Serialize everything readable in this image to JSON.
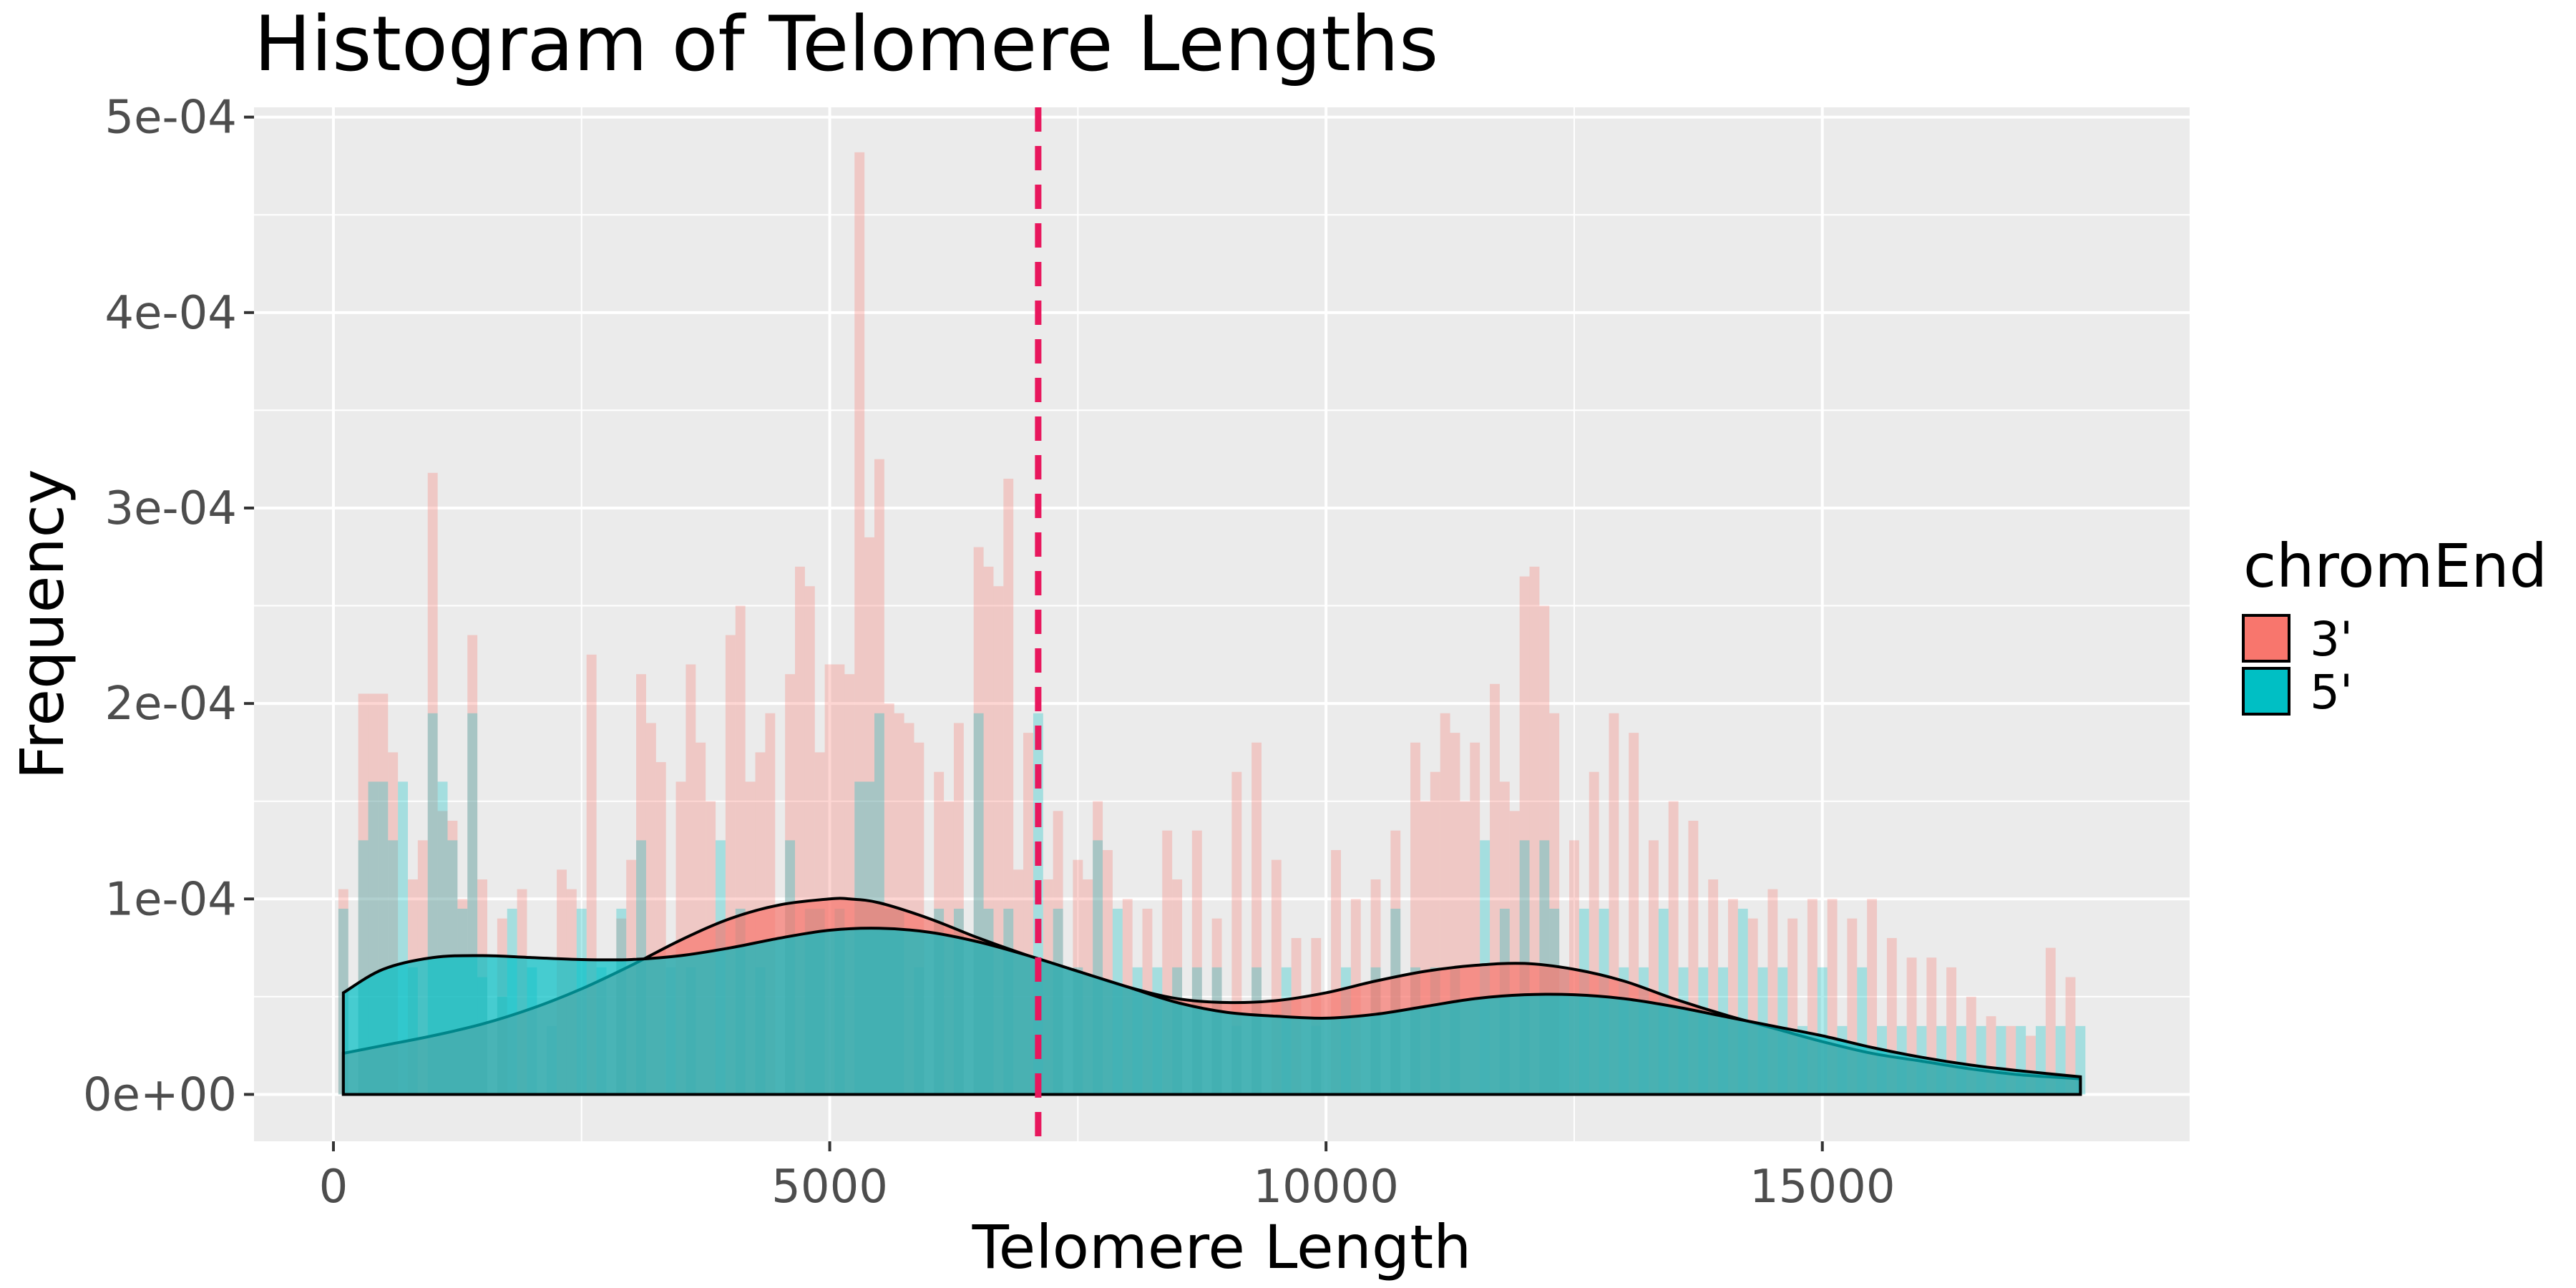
{
  "chart_data": {
    "type": "histogram",
    "title": "Histogram of Telomere Lengths",
    "xlabel": "Telomere Length",
    "ylabel": "Frequency",
    "xlim": [
      -800,
      18700
    ],
    "ylim": [
      -2.4e-05,
      0.000505
    ],
    "x_ticks": [
      0,
      5000,
      10000,
      15000
    ],
    "x_tick_labels": [
      "0",
      "5000",
      "10000",
      "15000"
    ],
    "y_ticks": [
      0,
      0.0001,
      0.0002,
      0.0003,
      0.0004,
      0.0005
    ],
    "y_tick_labels": [
      "0e+00",
      "1e-04",
      "2e-04",
      "3e-04",
      "4e-04",
      "5e-04"
    ],
    "grid": true,
    "legend": {
      "title": "chromEnd",
      "position": "right",
      "entries": [
        {
          "label": "3'",
          "color": "#F8766D"
        },
        {
          "label": "5'",
          "color": "#00BFC4"
        }
      ]
    },
    "reference_line": {
      "x": 7100,
      "color": "#E8175D",
      "style": "dashed"
    },
    "bin_width": 100,
    "series": [
      {
        "name": "3'",
        "color": "#F8766D",
        "histogram": {
          "x": [
            100,
            300,
            400,
            500,
            600,
            800,
            900,
            1000,
            1100,
            1200,
            1300,
            1400,
            1500,
            1700,
            1900,
            2300,
            2400,
            2600,
            2900,
            3000,
            3100,
            3200,
            3300,
            3500,
            3600,
            3700,
            3800,
            4000,
            4100,
            4200,
            4300,
            4400,
            4600,
            4700,
            4800,
            4900,
            5000,
            5100,
            5200,
            5300,
            5400,
            5500,
            5600,
            5700,
            5800,
            5900,
            6100,
            6200,
            6300,
            6500,
            6600,
            6700,
            6800,
            6900,
            7000,
            7200,
            7300,
            7500,
            7600,
            7700,
            7800,
            8000,
            8200,
            8400,
            8500,
            8700,
            8900,
            9100,
            9300,
            9500,
            9700,
            9900,
            10100,
            10300,
            10500,
            10700,
            10900,
            11000,
            11100,
            11200,
            11300,
            11400,
            11500,
            11700,
            11800,
            11900,
            12000,
            12100,
            12200,
            12300,
            12500,
            12700,
            12900,
            13100,
            13300,
            13500,
            13700,
            13900,
            14100,
            14300,
            14500,
            14700,
            14900,
            15100,
            15300,
            15500,
            15700,
            15900,
            16100,
            16300,
            16500,
            16700,
            16900,
            17100,
            17300,
            17500
          ],
          "y": [
            0.000105,
            0.000205,
            0.000205,
            0.000205,
            0.000175,
            0.00011,
            0.00013,
            0.000318,
            0.000145,
            0.00014,
            0.0001,
            0.000235,
            0.00011,
            9e-05,
            0.000105,
            0.000115,
            0.000105,
            0.000225,
            9e-05,
            0.00012,
            0.000215,
            0.00019,
            0.00017,
            0.00016,
            0.00022,
            0.00018,
            0.00015,
            0.000235,
            0.00025,
            0.00016,
            0.000175,
            0.000195,
            0.000215,
            0.00027,
            0.00026,
            0.000175,
            0.00022,
            0.00022,
            0.000215,
            0.000482,
            0.000285,
            0.000325,
            0.0002,
            0.000195,
            0.00019,
            0.00018,
            0.000165,
            0.00015,
            0.00019,
            0.00028,
            0.00027,
            0.00026,
            0.000315,
            0.000115,
            0.000185,
            0.00011,
            0.000145,
            0.00012,
            0.00011,
            0.00015,
            0.000125,
            0.0001,
            9.5e-05,
            0.000135,
            0.00011,
            0.000135,
            9e-05,
            0.000165,
            0.00018,
            0.00012,
            8e-05,
            8e-05,
            0.000125,
            0.0001,
            0.00011,
            0.000135,
            0.00018,
            0.00015,
            0.000165,
            0.000195,
            0.000185,
            0.00015,
            0.00018,
            0.00021,
            0.00016,
            0.000145,
            0.000265,
            0.00027,
            0.00025,
            0.000195,
            0.00013,
            0.000165,
            0.000195,
            0.000185,
            0.00013,
            0.00015,
            0.00014,
            0.00011,
            0.0001,
            9e-05,
            0.000105,
            9e-05,
            0.0001,
            0.0001,
            9e-05,
            0.0001,
            8e-05,
            7e-05,
            7e-05,
            6.5e-05,
            5e-05,
            4e-05,
            3.5e-05,
            3e-05,
            7.5e-05,
            6e-05
          ]
        },
        "density": {
          "x": [
            100,
            500,
            1000,
            1500,
            2000,
            2500,
            3000,
            3500,
            4000,
            4500,
            5000,
            5200,
            5500,
            6000,
            6500,
            7000,
            7500,
            8000,
            8500,
            9000,
            9500,
            10000,
            10500,
            11000,
            11500,
            12000,
            12500,
            13000,
            13500,
            14000,
            14500,
            15000,
            15500,
            16000,
            16500,
            17000,
            17600
          ],
          "y": [
            2.1e-05,
            2.5e-05,
            3e-05,
            3.6e-05,
            4.4e-05,
            5.4e-05,
            6.6e-05,
            7.9e-05,
            9e-05,
            9.7e-05,
            0.0001,
            0.0001,
            9.8e-05,
            9e-05,
            8e-05,
            7.1e-05,
            6.3e-05,
            5.5e-05,
            4.9e-05,
            4.7e-05,
            4.8e-05,
            5.2e-05,
            5.8e-05,
            6.3e-05,
            6.6e-05,
            6.7e-05,
            6.4e-05,
            5.8e-05,
            4.9e-05,
            4.1e-05,
            3.4e-05,
            2.7e-05,
            2.1e-05,
            1.7e-05,
            1.3e-05,
            1e-05,
            8e-06
          ]
        }
      },
      {
        "name": "5'",
        "color": "#00BFC4",
        "histogram": {
          "x": [
            100,
            300,
            400,
            500,
            600,
            700,
            800,
            1000,
            1100,
            1200,
            1300,
            1400,
            1500,
            1700,
            1800,
            2000,
            2200,
            2500,
            2700,
            2900,
            3100,
            3400,
            3600,
            3900,
            4100,
            4300,
            4600,
            4800,
            4900,
            5100,
            5300,
            5400,
            5500,
            5600,
            5700,
            5900,
            6100,
            6300,
            6500,
            6600,
            6800,
            7100,
            7300,
            7500,
            7700,
            7900,
            8100,
            8300,
            8500,
            8700,
            8900,
            9100,
            9300,
            9600,
            9900,
            10200,
            10500,
            10700,
            10900,
            11100,
            11300,
            11600,
            11800,
            12000,
            12200,
            12300,
            12400,
            12600,
            12800,
            13000,
            13200,
            13400,
            13600,
            13800,
            14000,
            14200,
            14400,
            14600,
            14800,
            15000,
            15200,
            15400,
            15600,
            15800,
            16000,
            16200,
            16400,
            16600,
            16800,
            17000,
            17200,
            17400,
            17600
          ],
          "y": [
            9.5e-05,
            0.00013,
            0.00016,
            0.00016,
            0.00013,
            0.00016,
            6.5e-05,
            0.000195,
            0.00016,
            0.00013,
            9.5e-05,
            0.000195,
            6e-05,
            5e-05,
            9.5e-05,
            6.5e-05,
            3.5e-05,
            9.5e-05,
            6.5e-05,
            9.5e-05,
            0.00013,
            6.5e-05,
            6.5e-05,
            0.00013,
            9.5e-05,
            6.5e-05,
            0.00013,
            9.5e-05,
            9.5e-05,
            9.5e-05,
            0.00016,
            0.00016,
            0.000195,
            9.5e-05,
            9.5e-05,
            6.5e-05,
            9.5e-05,
            9.5e-05,
            0.000195,
            9.5e-05,
            9.5e-05,
            0.000195,
            9.5e-05,
            6.5e-05,
            0.00013,
            9.5e-05,
            6.5e-05,
            6.5e-05,
            6.5e-05,
            6.5e-05,
            6.5e-05,
            3.5e-05,
            6.5e-05,
            6.5e-05,
            3.5e-05,
            6.5e-05,
            6.5e-05,
            9.5e-05,
            6.5e-05,
            6.5e-05,
            6.5e-05,
            0.00013,
            9.5e-05,
            0.00013,
            0.00013,
            9.5e-05,
            6.5e-05,
            9.5e-05,
            9.5e-05,
            6.5e-05,
            6.5e-05,
            9.5e-05,
            6.5e-05,
            6.5e-05,
            6.5e-05,
            9.5e-05,
            6.5e-05,
            6.5e-05,
            3.5e-05,
            6.5e-05,
            3.5e-05,
            6.5e-05,
            3.5e-05,
            3.5e-05,
            3.5e-05,
            3.5e-05,
            3.5e-05,
            3.5e-05,
            3.5e-05,
            3.5e-05,
            3.5e-05,
            3.5e-05,
            3.5e-05
          ]
        },
        "density": {
          "x": [
            100,
            500,
            1000,
            1500,
            2000,
            2500,
            3000,
            3500,
            4000,
            4500,
            5000,
            5500,
            6000,
            6500,
            7000,
            7500,
            8000,
            8500,
            9000,
            9500,
            10000,
            10500,
            11000,
            11500,
            12000,
            12500,
            13000,
            13500,
            14000,
            14500,
            15000,
            15500,
            16000,
            16500,
            17000,
            17600
          ],
          "y": [
            5.2e-05,
            6.4e-05,
            7e-05,
            7.1e-05,
            7e-05,
            6.9e-05,
            6.9e-05,
            7.1e-05,
            7.5e-05,
            8e-05,
            8.4e-05,
            8.5e-05,
            8.3e-05,
            7.8e-05,
            7.1e-05,
            6.3e-05,
            5.5e-05,
            4.7e-05,
            4.2e-05,
            4e-05,
            3.9e-05,
            4.1e-05,
            4.5e-05,
            4.9e-05,
            5.1e-05,
            5.1e-05,
            4.9e-05,
            4.5e-05,
            4e-05,
            3.5e-05,
            3e-05,
            2.4e-05,
            1.9e-05,
            1.5e-05,
            1.2e-05,
            9e-06
          ]
        }
      }
    ]
  }
}
